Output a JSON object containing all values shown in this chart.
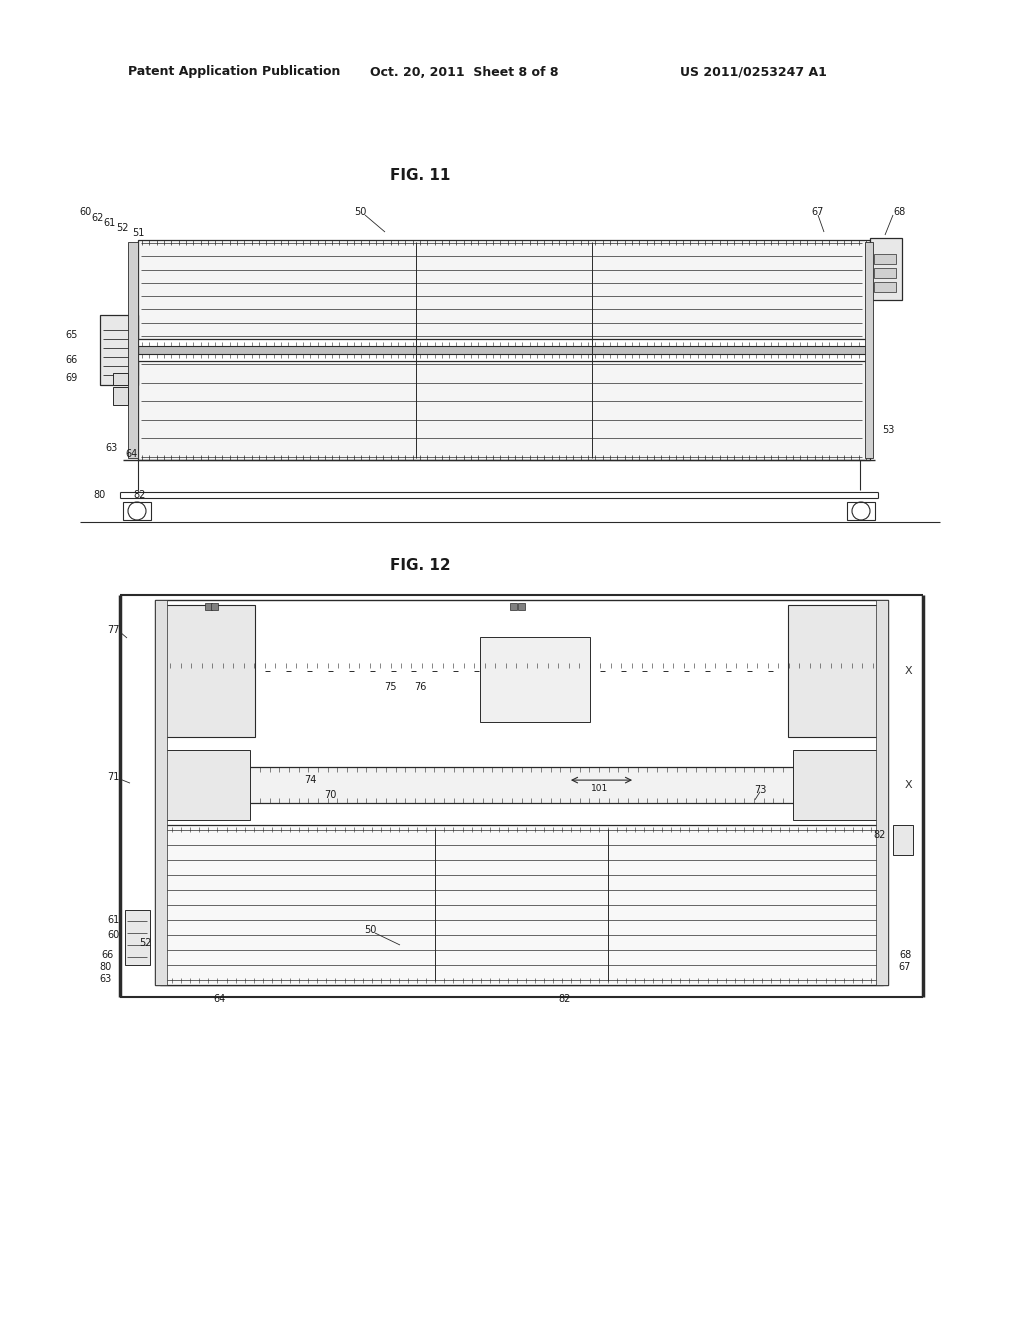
{
  "bg_color": "#ffffff",
  "line_color": "#2a2a2a",
  "header_left": "Patent Application Publication",
  "header_center": "Oct. 20, 2011  Sheet 8 of 8",
  "header_right": "US 2011/0253247 A1",
  "fig11_title": "FIG. 11",
  "fig12_title": "FIG. 12",
  "label_fontsize": 7.0,
  "title_fontsize": 11
}
